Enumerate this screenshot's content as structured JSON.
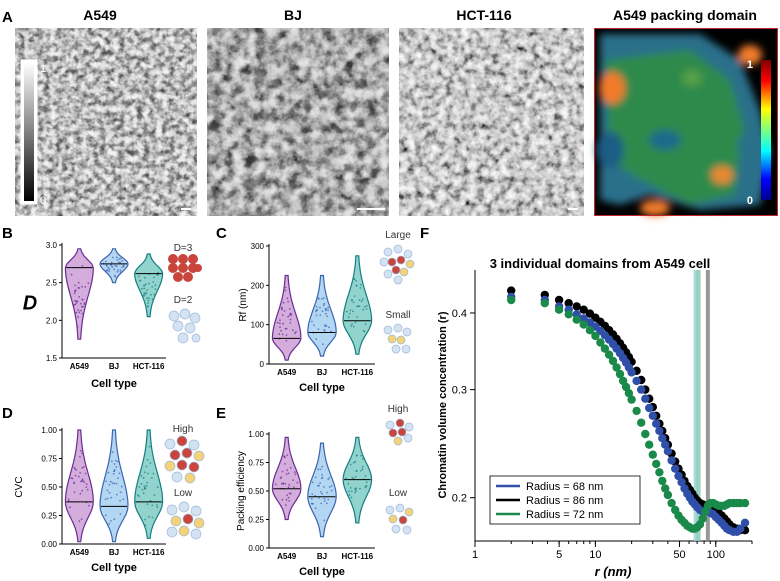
{
  "panel_letters": {
    "a": "A",
    "b": "B",
    "c": "C",
    "d": "D",
    "e": "E",
    "f": "F"
  },
  "panel_a": {
    "titles": [
      "A549",
      "BJ",
      "HCT-116",
      "A549 packing domain"
    ],
    "gray_colorbar": {
      "max": "1",
      "min": "0"
    },
    "jet_colorbar": {
      "max": "1",
      "min": "0"
    }
  },
  "colors": {
    "A549": "#6a2c91",
    "BJ": "#3a63b0",
    "HCT-116": "#117f80",
    "A549_fill": "#c592d0",
    "BJ_fill": "#99c8ee",
    "HCT_fill": "#6fc4bd",
    "blue_series": "#2f4fa8",
    "black_series": "#000000",
    "green_series": "#1a8a4a"
  },
  "chart_data": [
    {
      "panel": "B",
      "type": "violin",
      "categories": [
        "A549",
        "BJ",
        "HCT-116"
      ],
      "xlabel": "Cell type",
      "ylabel": "D",
      "ylim": [
        1.5,
        3.0
      ],
      "yticks": [
        "1.5",
        "2.0",
        "2.5",
        "3.0"
      ],
      "medians": [
        2.7,
        2.75,
        2.62
      ],
      "min": [
        1.75,
        2.5,
        2.05
      ],
      "max": [
        2.95,
        2.95,
        2.88
      ],
      "annotations": [
        "D=3",
        "D=2"
      ]
    },
    {
      "panel": "C",
      "type": "violin",
      "categories": [
        "A549",
        "BJ",
        "HCT-116"
      ],
      "xlabel": "Cell type",
      "ylabel": "Rf (nm)",
      "ylim": [
        0,
        300
      ],
      "yticks": [
        "0",
        "100",
        "200",
        "300"
      ],
      "medians": [
        65,
        80,
        110
      ],
      "min": [
        10,
        20,
        25
      ],
      "max": [
        225,
        225,
        275
      ],
      "annotations": [
        "Large",
        "Small"
      ]
    },
    {
      "panel": "D",
      "type": "violin",
      "categories": [
        "A549",
        "BJ",
        "HCT-116"
      ],
      "xlabel": "Cell type",
      "ylabel": "CVC",
      "ylim": [
        0,
        1.0
      ],
      "yticks": [
        "0.00",
        "0.25",
        "0.50",
        "0.75",
        "1.00"
      ],
      "medians": [
        0.37,
        0.33,
        0.37
      ],
      "min": [
        0.02,
        0.02,
        0.05
      ],
      "max": [
        1.0,
        1.0,
        1.0
      ],
      "annotations": [
        "High",
        "Low"
      ]
    },
    {
      "panel": "E",
      "type": "violin",
      "categories": [
        "A549",
        "BJ",
        "HCT-116"
      ],
      "xlabel": "Cell type",
      "ylabel": "Packing efficiency",
      "ylim": [
        0,
        1.0
      ],
      "yticks": [
        "0.00",
        "0.25",
        "0.50",
        "0.75",
        "1.00"
      ],
      "medians": [
        0.52,
        0.45,
        0.6
      ],
      "min": [
        0.25,
        0.1,
        0.22
      ],
      "max": [
        0.97,
        0.92,
        0.97
      ],
      "annotations": [
        "High",
        "Low"
      ]
    },
    {
      "panel": "F",
      "type": "scatter",
      "title": "3 individual domains from A549 cell",
      "xlabel": "r (nm)",
      "ylabel": "Chromatin volume concentration (r)",
      "xscale": "log",
      "yscale": "log",
      "xlim": [
        1,
        200
      ],
      "ylim": [
        0.17,
        0.47
      ],
      "xticks": [
        "1",
        "5",
        "10",
        "50",
        "100"
      ],
      "yticks": [
        "0.2",
        "0.3",
        "0.4"
      ],
      "x": [
        2,
        3.8,
        5,
        6,
        7,
        8,
        9,
        10,
        11,
        12,
        13,
        14,
        15,
        16,
        17,
        18,
        19,
        20,
        22,
        24,
        26,
        28,
        30,
        32,
        34,
        36,
        38,
        40,
        43,
        46,
        49,
        52,
        55,
        58,
        61,
        64,
        67,
        70,
        74,
        78,
        82,
        86,
        90,
        95,
        100,
        106,
        112,
        118,
        124,
        130,
        140,
        150,
        160,
        175
      ],
      "series": [
        {
          "name": "Radius = 68 nm",
          "color_key": "blue_series",
          "radius_nm": 68,
          "values": [
            0.425,
            0.42,
            0.41,
            0.405,
            0.398,
            0.392,
            0.386,
            0.38,
            0.374,
            0.368,
            0.362,
            0.356,
            0.35,
            0.344,
            0.338,
            0.332,
            0.326,
            0.32,
            0.31,
            0.3,
            0.29,
            0.28,
            0.272,
            0.264,
            0.257,
            0.25,
            0.244,
            0.238,
            0.23,
            0.223,
            0.217,
            0.212,
            0.207,
            0.203,
            0.2,
            0.197,
            0.195,
            0.193,
            0.191,
            0.19,
            0.19,
            0.19,
            0.189,
            0.188,
            0.186,
            0.184,
            0.182,
            0.18,
            0.178,
            0.177,
            0.176,
            0.176,
            0.178,
            0.182
          ]
        },
        {
          "name": "Radius = 86 nm",
          "color_key": "black_series",
          "radius_nm": 86,
          "values": [
            0.435,
            0.428,
            0.42,
            0.415,
            0.41,
            0.405,
            0.399,
            0.393,
            0.387,
            0.381,
            0.375,
            0.369,
            0.363,
            0.357,
            0.351,
            0.345,
            0.339,
            0.333,
            0.322,
            0.311,
            0.3,
            0.29,
            0.281,
            0.272,
            0.264,
            0.257,
            0.25,
            0.244,
            0.236,
            0.229,
            0.223,
            0.218,
            0.213,
            0.209,
            0.206,
            0.203,
            0.2,
            0.198,
            0.196,
            0.195,
            0.194,
            0.193,
            0.193,
            0.192,
            0.191,
            0.189,
            0.187,
            0.185,
            0.183,
            0.181,
            0.179,
            0.178,
            0.177,
            0.177
          ]
        },
        {
          "name": "Radius = 72 nm",
          "color_key": "green_series",
          "radius_nm": 72,
          "values": [
            0.42,
            0.415,
            0.405,
            0.398,
            0.39,
            0.383,
            0.375,
            0.367,
            0.358,
            0.35,
            0.342,
            0.334,
            0.326,
            0.318,
            0.31,
            0.303,
            0.296,
            0.289,
            0.277,
            0.265,
            0.254,
            0.244,
            0.235,
            0.227,
            0.22,
            0.213,
            0.207,
            0.202,
            0.196,
            0.191,
            0.187,
            0.184,
            0.182,
            0.18,
            0.179,
            0.178,
            0.178,
            0.179,
            0.181,
            0.185,
            0.19,
            0.194,
            0.196,
            0.196,
            0.195,
            0.194,
            0.194,
            0.194,
            0.195,
            0.196,
            0.196,
            0.196,
            0.196,
            0.196
          ]
        }
      ],
      "vlines": [
        68,
        72,
        86
      ],
      "legend_position": "bottom-left"
    }
  ]
}
